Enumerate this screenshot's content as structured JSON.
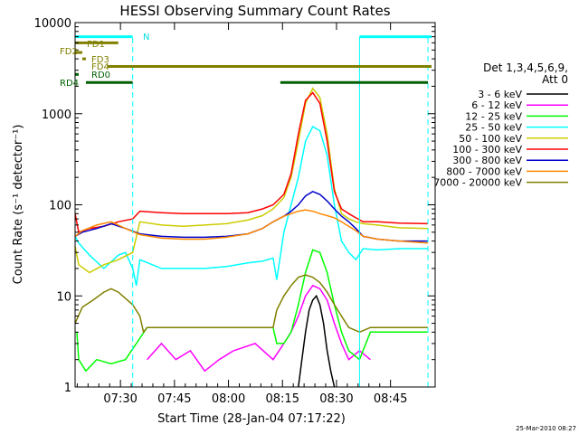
{
  "chart_data": {
    "type": "line",
    "title": "HESSI Observing Summary Count Rates",
    "xlabel": "Start Time (28-Jan-04 07:17:22)",
    "ylabel": "Count Rate (s⁻¹ detector⁻¹)",
    "x_units": "minutes after 07:17:22",
    "xlim": [
      0,
      100
    ],
    "ylim": [
      1,
      10000
    ],
    "y_scale": "log",
    "x_ticks": [
      {
        "label": "07:30",
        "value": 12.6
      },
      {
        "label": "07:45",
        "value": 27.6
      },
      {
        "label": "08:00",
        "value": 42.6
      },
      {
        "label": "08:15",
        "value": 57.6
      },
      {
        "label": "08:30",
        "value": 72.6
      },
      {
        "label": "08:45",
        "value": 87.6
      }
    ],
    "y_ticks": [
      {
        "label": "1",
        "value": 1
      },
      {
        "label": "10",
        "value": 10
      },
      {
        "label": "100",
        "value": 100
      },
      {
        "label": "1000",
        "value": 1000
      },
      {
        "label": "10000",
        "value": 10000
      }
    ],
    "legend_title": [
      "Det 1,3,4,5,6,9,",
      "Att 0"
    ],
    "legend_position": "right",
    "series": [
      {
        "name": "3 - 6 keV",
        "color": "#000000",
        "x": [
          62,
          63,
          64,
          65,
          66,
          67,
          68,
          69,
          70,
          71,
          72
        ],
        "y": [
          1,
          2,
          4,
          7,
          9,
          10,
          8,
          5,
          2.5,
          1.5,
          1
        ]
      },
      {
        "name": "6 - 12 keV",
        "color": "#ff00ff",
        "x": [
          20,
          24,
          28,
          32,
          36,
          40,
          44,
          50,
          55,
          58,
          60,
          62,
          64,
          66,
          68,
          70,
          72,
          74,
          76,
          79,
          82
        ],
        "y": [
          2,
          3,
          2,
          2.5,
          1.5,
          2,
          2.5,
          3,
          2,
          3,
          4,
          6,
          10,
          13,
          12,
          9,
          5,
          3,
          2,
          2.5,
          2
        ]
      },
      {
        "name": "12 - 25 keV",
        "color": "#00ff00",
        "x": [
          0.5,
          1,
          3,
          6,
          10,
          14,
          17,
          20,
          28,
          36,
          44,
          52,
          55,
          56,
          58,
          60,
          62,
          64,
          66,
          68,
          70,
          72,
          74,
          76,
          79,
          82,
          88,
          95,
          98
        ],
        "y": [
          4,
          2,
          1.5,
          2,
          1.8,
          2,
          3,
          4.5,
          4.5,
          4.5,
          4.5,
          4.5,
          4.5,
          3,
          3,
          4,
          8,
          18,
          32,
          30,
          18,
          8,
          4,
          2.5,
          2,
          4,
          4,
          4,
          4
        ]
      },
      {
        "name": "25 - 50 keV",
        "color": "#00ffff",
        "x": [
          0,
          1,
          4,
          8,
          12,
          14,
          16,
          17,
          18,
          24,
          30,
          36,
          42,
          48,
          52,
          55,
          56,
          58,
          60,
          62,
          64,
          66,
          68,
          70,
          72,
          74,
          76,
          78,
          80,
          84,
          90,
          98
        ],
        "y": [
          45,
          38,
          28,
          20,
          28,
          30,
          20,
          13,
          25,
          20,
          20,
          20,
          21,
          23,
          24,
          26,
          15,
          50,
          100,
          200,
          500,
          720,
          650,
          350,
          100,
          40,
          30,
          25,
          33,
          32,
          33,
          33
        ]
      },
      {
        "name": "50 - 100 keV",
        "color": "#cccc00",
        "x": [
          0,
          1,
          4,
          8,
          12,
          16,
          18,
          24,
          30,
          36,
          42,
          48,
          52,
          55,
          58,
          60,
          62,
          64,
          66,
          68,
          70,
          72,
          74,
          76,
          78,
          80,
          84,
          90,
          98
        ],
        "y": [
          35,
          22,
          18,
          22,
          25,
          30,
          65,
          60,
          58,
          60,
          62,
          68,
          76,
          90,
          120,
          200,
          500,
          1300,
          1900,
          1500,
          600,
          150,
          80,
          70,
          65,
          62,
          60,
          56,
          55
        ]
      },
      {
        "name": "100 - 300 keV",
        "color": "#ff0000",
        "x": [
          0,
          1,
          4,
          8,
          12,
          16,
          18,
          24,
          30,
          36,
          42,
          48,
          52,
          55,
          58,
          60,
          62,
          64,
          66,
          68,
          70,
          72,
          74,
          76,
          78,
          80,
          84,
          90,
          98
        ],
        "y": [
          80,
          50,
          55,
          58,
          65,
          70,
          85,
          82,
          80,
          80,
          80,
          82,
          90,
          100,
          130,
          220,
          600,
          1400,
          1700,
          1300,
          500,
          140,
          90,
          80,
          72,
          65,
          65,
          63,
          62
        ]
      },
      {
        "name": "300 - 800 keV",
        "color": "#0000cc",
        "x": [
          0,
          2,
          6,
          10,
          14,
          18,
          24,
          30,
          36,
          42,
          48,
          52,
          55,
          58,
          60,
          62,
          64,
          66,
          68,
          70,
          72,
          74,
          76,
          78,
          80,
          84,
          90,
          98
        ],
        "y": [
          45,
          50,
          55,
          62,
          55,
          48,
          45,
          44,
          44,
          45,
          48,
          55,
          65,
          75,
          85,
          100,
          125,
          140,
          130,
          110,
          90,
          75,
          65,
          55,
          45,
          42,
          40,
          40
        ]
      },
      {
        "name": "800 - 7000 keV",
        "color": "#ff8800",
        "x": [
          0,
          2,
          6,
          10,
          14,
          18,
          24,
          30,
          36,
          42,
          48,
          52,
          55,
          58,
          60,
          62,
          64,
          66,
          68,
          70,
          72,
          74,
          76,
          78,
          80,
          84,
          90,
          98
        ],
        "y": [
          45,
          52,
          60,
          65,
          55,
          47,
          43,
          42,
          42,
          44,
          48,
          55,
          65,
          75,
          80,
          85,
          88,
          85,
          80,
          76,
          72,
          65,
          58,
          52,
          45,
          42,
          40,
          38
        ]
      },
      {
        "name": "7000 - 20000 keV",
        "color": "#808000",
        "x": [
          0,
          2,
          5,
          8,
          10,
          12,
          16,
          18,
          19,
          20,
          28,
          36,
          44,
          52,
          55,
          56,
          58,
          60,
          62,
          64,
          66,
          68,
          70,
          72,
          74,
          76,
          79,
          82,
          88,
          95,
          98
        ],
        "y": [
          5,
          7.5,
          9,
          11,
          12,
          11,
          8,
          6,
          4,
          4.5,
          4.5,
          4.5,
          4.5,
          4.5,
          4.5,
          7,
          10,
          13,
          16,
          17,
          16,
          14,
          11,
          8,
          6,
          4.5,
          4,
          4.5,
          4.5,
          4.5,
          4.5
        ]
      }
    ],
    "state_bars": [
      {
        "label": "N",
        "label_color": "#00e0e0",
        "color": "#00ffff",
        "y": 7000,
        "segments": [
          [
            0,
            16
          ],
          [
            79,
            99
          ]
        ]
      },
      {
        "label": "FD1",
        "label_color": "#808000",
        "color": "#808000",
        "y": 6000,
        "segments": [
          [
            0,
            12
          ]
        ]
      },
      {
        "label": "FD2",
        "label_color": "#808000",
        "color": "#808000",
        "y": 4700,
        "segments": [
          [
            0,
            2
          ]
        ]
      },
      {
        "label": "FD3",
        "label_color": "#808000",
        "color": "#808000",
        "y": 4000,
        "segments": [
          [
            2,
            3
          ]
        ]
      },
      {
        "label": "FD4",
        "label_color": "#808000",
        "color": "#808000",
        "y": 3300,
        "segments": [
          [
            9,
            99
          ]
        ]
      },
      {
        "label": "RD0",
        "label_color": "#006000",
        "color": "#006000",
        "y": 2700,
        "segments": [
          [
            0,
            1
          ]
        ]
      },
      {
        "label": "RD4",
        "label_color": "#006000",
        "color": "#006000",
        "y": 2200,
        "segments": [
          [
            3,
            16
          ],
          [
            57,
            79
          ],
          [
            79,
            98
          ]
        ]
      }
    ],
    "state_bar_lines": [
      {
        "x": 0,
        "y": [
          1,
          7000
        ],
        "color": "#00ffff",
        "dash": false
      },
      {
        "x": 16,
        "y": [
          1,
          7000
        ],
        "color": "#00ffff",
        "dash": true
      },
      {
        "x": 79,
        "y": [
          1,
          7000
        ],
        "color": "#00ffff",
        "dash": false
      },
      {
        "x": 98,
        "y": [
          1,
          7000
        ],
        "color": "#00ffff",
        "dash": true
      }
    ],
    "timestamp": "25-Mar-2010 08:27"
  }
}
